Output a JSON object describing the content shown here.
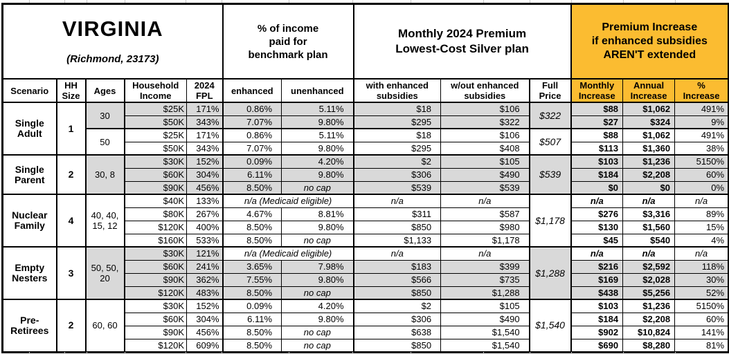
{
  "colors": {
    "header_accent": "#FBBC31",
    "row_shade": "#D9D9D9"
  },
  "table_title": {
    "region": "VIRGINIA",
    "location": "(Richmond, 23173)"
  },
  "header_groups": {
    "income_pct": "% of income\npaid for\nbenchmark plan",
    "premium": "Monthly 2024 Premium\nLowest-Cost Silver plan",
    "increase": "Premium Increase\nif enhanced subsidies\nAREN'T extended"
  },
  "columns": {
    "scenario": "Scenario",
    "hh_size": "HH\nSize",
    "ages": "Ages",
    "household_income": "Household\nIncome",
    "fpl": "2024\nFPL",
    "enhanced": "enhanced",
    "unenhanced": "unenhanced",
    "with_sub": "with enhanced\nsubsidies",
    "wout_sub": "w/out enhanced\nsubsidies",
    "full_price": "Full\nPrice",
    "monthly": "Monthly\nIncrease",
    "annual": "Annual\nIncrease",
    "pct": "%\nIncrease"
  },
  "labels": {
    "medicaid_note": "n/a (Medicaid eligible)",
    "na": "n/a"
  },
  "scenarios": [
    {
      "name": "Single\nAdult",
      "hh_size": "1",
      "subgroups": [
        {
          "ages": "30",
          "shaded": true,
          "full_price": "$322",
          "rows": [
            {
              "income": "$25K",
              "fpl": "171%",
              "enhanced": "0.86%",
              "unenhanced": "5.11%",
              "with_sub": "$18",
              "wout_sub": "$106",
              "monthly": "$88",
              "annual": "$1,062",
              "pct": "491%"
            },
            {
              "income": "$50K",
              "fpl": "343%",
              "enhanced": "7.07%",
              "unenhanced": "9.80%",
              "with_sub": "$295",
              "wout_sub": "$322",
              "monthly": "$27",
              "annual": "$324",
              "pct": "9%"
            }
          ]
        },
        {
          "ages": "50",
          "shaded": false,
          "full_price": "$507",
          "rows": [
            {
              "income": "$25K",
              "fpl": "171%",
              "enhanced": "0.86%",
              "unenhanced": "5.11%",
              "with_sub": "$18",
              "wout_sub": "$106",
              "monthly": "$88",
              "annual": "$1,062",
              "pct": "491%"
            },
            {
              "income": "$50K",
              "fpl": "343%",
              "enhanced": "7.07%",
              "unenhanced": "9.80%",
              "with_sub": "$295",
              "wout_sub": "$408",
              "monthly": "$113",
              "annual": "$1,360",
              "pct": "38%"
            }
          ]
        }
      ]
    },
    {
      "name": "Single\nParent",
      "hh_size": "2",
      "subgroups": [
        {
          "ages": "30, 8",
          "shaded": true,
          "full_price": "$539",
          "rows": [
            {
              "income": "$30K",
              "fpl": "152%",
              "enhanced": "0.09%",
              "unenhanced": "4.20%",
              "with_sub": "$2",
              "wout_sub": "$105",
              "monthly": "$103",
              "annual": "$1,236",
              "pct": "5150%"
            },
            {
              "income": "$60K",
              "fpl": "304%",
              "enhanced": "6.11%",
              "unenhanced": "9.80%",
              "with_sub": "$306",
              "wout_sub": "$490",
              "monthly": "$184",
              "annual": "$2,208",
              "pct": "60%"
            },
            {
              "income": "$90K",
              "fpl": "456%",
              "enhanced": "8.50%",
              "unenhanced": "no cap",
              "with_sub": "$539",
              "wout_sub": "$539",
              "monthly": "$0",
              "annual": "$0",
              "pct": "0%"
            }
          ]
        }
      ]
    },
    {
      "name": "Nuclear\nFamily",
      "hh_size": "4",
      "subgroups": [
        {
          "ages": "40, 40,\n15, 12",
          "shaded": false,
          "full_price": "$1,178",
          "rows": [
            {
              "medicaid": true,
              "income": "$40K",
              "fpl": "133%"
            },
            {
              "income": "$80K",
              "fpl": "267%",
              "enhanced": "4.67%",
              "unenhanced": "8.81%",
              "with_sub": "$311",
              "wout_sub": "$587",
              "monthly": "$276",
              "annual": "$3,316",
              "pct": "89%"
            },
            {
              "income": "$120K",
              "fpl": "400%",
              "enhanced": "8.50%",
              "unenhanced": "9.80%",
              "with_sub": "$850",
              "wout_sub": "$980",
              "monthly": "$130",
              "annual": "$1,560",
              "pct": "15%"
            },
            {
              "income": "$160K",
              "fpl": "533%",
              "enhanced": "8.50%",
              "unenhanced": "no cap",
              "with_sub": "$1,133",
              "wout_sub": "$1,178",
              "monthly": "$45",
              "annual": "$540",
              "pct": "4%"
            }
          ]
        }
      ]
    },
    {
      "name": "Empty\nNesters",
      "hh_size": "3",
      "subgroups": [
        {
          "ages": "50, 50,\n20",
          "shaded": true,
          "full_price": "$1,288",
          "rows": [
            {
              "medicaid": true,
              "income": "$30K",
              "fpl": "121%"
            },
            {
              "income": "$60K",
              "fpl": "241%",
              "enhanced": "3.65%",
              "unenhanced": "7.98%",
              "with_sub": "$183",
              "wout_sub": "$399",
              "monthly": "$216",
              "annual": "$2,592",
              "pct": "118%"
            },
            {
              "income": "$90K",
              "fpl": "362%",
              "enhanced": "7.55%",
              "unenhanced": "9.80%",
              "with_sub": "$566",
              "wout_sub": "$735",
              "monthly": "$169",
              "annual": "$2,028",
              "pct": "30%"
            },
            {
              "income": "$120K",
              "fpl": "483%",
              "enhanced": "8.50%",
              "unenhanced": "no cap",
              "with_sub": "$850",
              "wout_sub": "$1,288",
              "monthly": "$438",
              "annual": "$5,256",
              "pct": "52%"
            }
          ]
        }
      ]
    },
    {
      "name": "Pre-\nRetirees",
      "hh_size": "2",
      "subgroups": [
        {
          "ages": "60, 60",
          "shaded": false,
          "full_price": "$1,540",
          "rows": [
            {
              "income": "$30K",
              "fpl": "152%",
              "enhanced": "0.09%",
              "unenhanced": "4.20%",
              "with_sub": "$2",
              "wout_sub": "$105",
              "monthly": "$103",
              "annual": "$1,236",
              "pct": "5150%"
            },
            {
              "income": "$60K",
              "fpl": "304%",
              "enhanced": "6.11%",
              "unenhanced": "9.80%",
              "with_sub": "$306",
              "wout_sub": "$490",
              "monthly": "$184",
              "annual": "$2,208",
              "pct": "60%"
            },
            {
              "income": "$90K",
              "fpl": "456%",
              "enhanced": "8.50%",
              "unenhanced": "no cap",
              "with_sub": "$638",
              "wout_sub": "$1,540",
              "monthly": "$902",
              "annual": "$10,824",
              "pct": "141%"
            },
            {
              "income": "$120K",
              "fpl": "609%",
              "enhanced": "8.50%",
              "unenhanced": "no cap",
              "with_sub": "$850",
              "wout_sub": "$1,540",
              "monthly": "$690",
              "annual": "$8,280",
              "pct": "81%"
            }
          ]
        }
      ]
    }
  ]
}
